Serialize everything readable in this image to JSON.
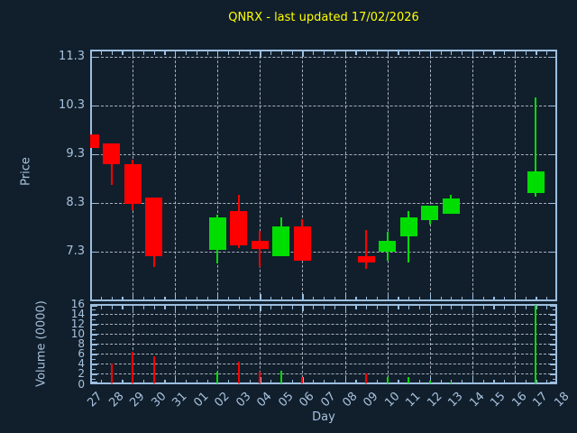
{
  "title": "QNRX - last updated 17/02/2026",
  "colors": {
    "background": "#111f2d",
    "title": "#ffff00",
    "axis": "#a8c2dc",
    "grid": "#c3cad2",
    "up_candle": "#00dd00",
    "down_candle": "#fe0000"
  },
  "chart_data": {
    "type": "candlestick",
    "title": "QNRX - last updated 17/02/2026",
    "xlabel": "Day",
    "grid": "dotted gray, vertical line every 2nd day, horizontal at each labeled tick",
    "price_axis": {
      "label": "Price",
      "ticks": [
        11.3,
        10.3,
        9.3,
        8.3,
        7.3
      ],
      "ylim": [
        6.3,
        11.45
      ]
    },
    "volume_axis": {
      "label": "Volume (0000)",
      "ticks": [
        16,
        14,
        12,
        10,
        8,
        6,
        4,
        2,
        0
      ],
      "ylim": [
        0,
        16.1
      ]
    },
    "x_ticklabels": [
      "27",
      "28",
      "29",
      "30",
      "31",
      "01",
      "02",
      "03",
      "04",
      "05",
      "06",
      "07",
      "08",
      "09",
      "10",
      "11",
      "12",
      "13",
      "14",
      "15",
      "16",
      "17",
      "18"
    ],
    "candles": [
      {
        "day": "27",
        "open": 9.7,
        "high": 9.7,
        "low": 9.43,
        "close": 9.43,
        "volume": 0
      },
      {
        "day": "28",
        "open": 9.52,
        "high": 9.52,
        "low": 8.67,
        "close": 9.09,
        "volume": 4.1
      },
      {
        "day": "29",
        "open": 9.1,
        "high": 9.18,
        "low": 8.16,
        "close": 8.28,
        "volume": 6.5
      },
      {
        "day": "30",
        "open": 8.42,
        "high": 8.42,
        "low": 6.99,
        "close": 7.2,
        "volume": 5.5
      },
      {
        "day": "02",
        "open": 7.33,
        "high": 8.06,
        "low": 7.05,
        "close": 8.0,
        "volume": 2.4
      },
      {
        "day": "03",
        "open": 8.13,
        "high": 8.47,
        "low": 7.38,
        "close": 7.43,
        "volume": 4.5
      },
      {
        "day": "04",
        "open": 7.52,
        "high": 7.73,
        "low": 6.99,
        "close": 7.36,
        "volume": 2.4
      },
      {
        "day": "05",
        "open": 7.2,
        "high": 8.0,
        "low": 7.2,
        "close": 7.81,
        "volume": 2.6
      },
      {
        "day": "06",
        "open": 7.81,
        "high": 7.97,
        "low": 7.12,
        "close": 7.12,
        "volume": 1.4
      },
      {
        "day": "09",
        "open": 7.21,
        "high": 7.75,
        "low": 6.95,
        "close": 7.07,
        "volume": 2.1
      },
      {
        "day": "10",
        "open": 7.3,
        "high": 7.71,
        "low": 7.11,
        "close": 7.52,
        "volume": 1.3
      },
      {
        "day": "11",
        "open": 7.62,
        "high": 8.13,
        "low": 7.08,
        "close": 8.01,
        "volume": 1.4
      },
      {
        "day": "12",
        "open": 7.95,
        "high": 8.24,
        "low": 7.86,
        "close": 8.24,
        "volume": 0.6
      },
      {
        "day": "13",
        "open": 8.08,
        "high": 8.47,
        "low": 8.08,
        "close": 8.39,
        "volume": 0.3
      },
      {
        "day": "17",
        "open": 8.51,
        "high": 10.46,
        "low": 8.43,
        "close": 8.94,
        "volume": 15.9
      }
    ]
  }
}
